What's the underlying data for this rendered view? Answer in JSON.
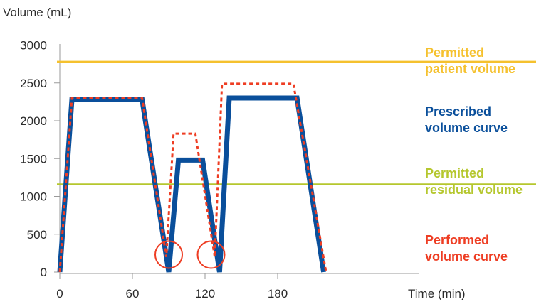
{
  "chart_data": {
    "type": "line",
    "ylabel": "Volume (mL)",
    "xlabel": "Time (min)",
    "xlim": [
      0,
      230
    ],
    "ylim": [
      0,
      3000
    ],
    "x_ticks": [
      0,
      60,
      120,
      180
    ],
    "y_ticks": [
      0,
      500,
      1000,
      1500,
      2000,
      2500,
      3000
    ],
    "grid": false,
    "series": [
      {
        "name": "Prescribed volume curve",
        "color": "#0a4f9b",
        "style": "solid",
        "x": [
          0,
          10,
          68,
          90,
          98,
          118,
          132,
          140,
          196,
          218
        ],
        "y": [
          0,
          2280,
          2280,
          0,
          1480,
          1480,
          0,
          2300,
          2300,
          0
        ]
      },
      {
        "name": "Performed volume curve",
        "color": "#ee3d23",
        "style": "dashed",
        "x": [
          0,
          10,
          68,
          88,
          94,
          112,
          128,
          134,
          193,
          220
        ],
        "y": [
          0,
          2300,
          2300,
          200,
          1830,
          1830,
          200,
          2490,
          2490,
          0
        ]
      }
    ],
    "reference_lines": [
      {
        "name": "Permitted patient volume",
        "y": 2780,
        "color": "#f5c12e"
      },
      {
        "name": "Permitted residual volume",
        "y": 1160,
        "color": "#b5c72e"
      }
    ],
    "markers": [
      {
        "shape": "circle",
        "x": 90,
        "y": 230,
        "color": "#ee3d23"
      },
      {
        "shape": "circle",
        "x": 125,
        "y": 230,
        "color": "#ee3d23"
      }
    ],
    "legend": [
      {
        "lines": [
          "Permitted",
          "patient volume"
        ],
        "color": "#f5c12e"
      },
      {
        "lines": [
          "Prescribed",
          "volume curve"
        ],
        "color": "#0a4f9b"
      },
      {
        "lines": [
          "Permitted",
          "residual volume"
        ],
        "color": "#b5c72e"
      },
      {
        "lines": [
          "Performed",
          "volume curve"
        ],
        "color": "#ee3d23"
      }
    ],
    "legend_placement": "right"
  }
}
